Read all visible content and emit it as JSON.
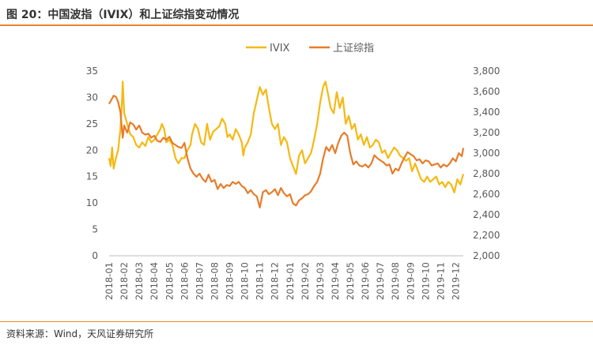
{
  "figure": {
    "title": "图 20：中国波指（IVIX）和上证综指变动情况",
    "source": "资料来源：Wind，天风证券研究所"
  },
  "chart_data": {
    "type": "line",
    "title": "",
    "legend_position": "top-center",
    "grid": false,
    "x_ticks": [
      "2018-01",
      "2018-02",
      "2018-03",
      "2018-04",
      "2018-05",
      "2018-06",
      "2018-07",
      "2018-08",
      "2018-09",
      "2018-10",
      "2018-11",
      "2018-12",
      "2019-01",
      "2019-02",
      "2019-03",
      "2019-04",
      "2019-05",
      "2019-06",
      "2019-07",
      "2019-08",
      "2019-09",
      "2019-10",
      "2019-11",
      "2019-12"
    ],
    "x_range": [
      0,
      23.5
    ],
    "y_left": {
      "range": [
        0,
        35
      ],
      "ticks": [
        0,
        5,
        10,
        15,
        20,
        25,
        30,
        35
      ],
      "tick_labels": [
        "0",
        "5",
        "10",
        "15",
        "20",
        "25",
        "30",
        "35"
      ]
    },
    "y_right": {
      "range": [
        2000,
        3800
      ],
      "ticks": [
        2000,
        2200,
        2400,
        2600,
        2800,
        3000,
        3200,
        3400,
        3600,
        3800
      ],
      "tick_labels": [
        "2,000",
        "2,200",
        "2,400",
        "2,600",
        "2,800",
        "3,000",
        "3,200",
        "3,400",
        "3,600",
        "3,800"
      ]
    },
    "series": [
      {
        "name": "IVIX",
        "axis": "left",
        "color": "#f5b914",
        "points": [
          [
            0.0,
            18.5
          ],
          [
            0.1,
            17.0
          ],
          [
            0.2,
            20.5
          ],
          [
            0.3,
            16.5
          ],
          [
            0.45,
            18.5
          ],
          [
            0.6,
            20.0
          ],
          [
            0.75,
            24.0
          ],
          [
            0.85,
            29.0
          ],
          [
            0.9,
            33.0
          ],
          [
            1.0,
            27.0
          ],
          [
            1.2,
            25.0
          ],
          [
            1.4,
            23.0
          ],
          [
            1.6,
            22.5
          ],
          [
            1.8,
            21.0
          ],
          [
            2.0,
            20.5
          ],
          [
            2.2,
            21.5
          ],
          [
            2.4,
            20.8
          ],
          [
            2.6,
            22.5
          ],
          [
            2.8,
            21.5
          ],
          [
            3.0,
            22.0
          ],
          [
            3.2,
            23.0
          ],
          [
            3.4,
            24.0
          ],
          [
            3.5,
            25.0
          ],
          [
            3.65,
            24.0
          ],
          [
            3.8,
            21.5
          ],
          [
            4.0,
            22.0
          ],
          [
            4.2,
            21.0
          ],
          [
            4.4,
            18.5
          ],
          [
            4.6,
            17.5
          ],
          [
            4.8,
            18.5
          ],
          [
            5.0,
            18.5
          ],
          [
            5.2,
            20.0
          ],
          [
            5.4,
            21.0
          ],
          [
            5.5,
            23.0
          ],
          [
            5.7,
            25.0
          ],
          [
            5.9,
            24.0
          ],
          [
            6.1,
            21.5
          ],
          [
            6.3,
            21.0
          ],
          [
            6.5,
            25.0
          ],
          [
            6.7,
            22.0
          ],
          [
            6.9,
            23.5
          ],
          [
            7.1,
            24.0
          ],
          [
            7.3,
            24.5
          ],
          [
            7.5,
            26.0
          ],
          [
            7.7,
            25.0
          ],
          [
            7.85,
            22.5
          ],
          [
            8.0,
            23.0
          ],
          [
            8.2,
            22.0
          ],
          [
            8.4,
            24.0
          ],
          [
            8.6,
            23.0
          ],
          [
            8.8,
            21.5
          ],
          [
            8.9,
            19.0
          ],
          [
            9.0,
            20.5
          ],
          [
            9.2,
            21.5
          ],
          [
            9.4,
            23.0
          ],
          [
            9.6,
            27.0
          ],
          [
            9.8,
            29.5
          ],
          [
            10.0,
            32.0
          ],
          [
            10.2,
            30.5
          ],
          [
            10.4,
            31.5
          ],
          [
            10.6,
            28.0
          ],
          [
            10.8,
            25.0
          ],
          [
            11.0,
            24.0
          ],
          [
            11.2,
            25.0
          ],
          [
            11.4,
            21.0
          ],
          [
            11.6,
            22.5
          ],
          [
            11.8,
            21.5
          ],
          [
            12.0,
            18.5
          ],
          [
            12.2,
            17.0
          ],
          [
            12.4,
            15.5
          ],
          [
            12.6,
            19.0
          ],
          [
            12.8,
            20.0
          ],
          [
            13.0,
            17.5
          ],
          [
            13.2,
            18.5
          ],
          [
            13.4,
            19.5
          ],
          [
            13.6,
            22.0
          ],
          [
            13.8,
            25.0
          ],
          [
            14.0,
            29.0
          ],
          [
            14.2,
            32.0
          ],
          [
            14.35,
            33.0
          ],
          [
            14.5,
            31.0
          ],
          [
            14.7,
            28.0
          ],
          [
            14.9,
            27.0
          ],
          [
            15.1,
            31.0
          ],
          [
            15.3,
            28.0
          ],
          [
            15.5,
            30.0
          ],
          [
            15.7,
            25.0
          ],
          [
            15.9,
            26.5
          ],
          [
            16.1,
            24.0
          ],
          [
            16.3,
            25.0
          ],
          [
            16.5,
            22.0
          ],
          [
            16.7,
            23.0
          ],
          [
            16.9,
            21.0
          ],
          [
            17.1,
            22.5
          ],
          [
            17.3,
            20.5
          ],
          [
            17.5,
            21.0
          ],
          [
            17.7,
            22.0
          ],
          [
            17.9,
            21.5
          ],
          [
            18.1,
            19.5
          ],
          [
            18.3,
            20.0
          ],
          [
            18.5,
            18.5
          ],
          [
            18.7,
            19.5
          ],
          [
            18.9,
            20.5
          ],
          [
            19.1,
            20.0
          ],
          [
            19.3,
            19.0
          ],
          [
            19.5,
            18.5
          ],
          [
            19.7,
            18.0
          ],
          [
            19.9,
            18.5
          ],
          [
            20.1,
            16.0
          ],
          [
            20.3,
            17.5
          ],
          [
            20.5,
            16.0
          ],
          [
            20.7,
            14.5
          ],
          [
            20.9,
            14.0
          ],
          [
            21.1,
            15.0
          ],
          [
            21.3,
            14.0
          ],
          [
            21.5,
            14.5
          ],
          [
            21.7,
            15.0
          ],
          [
            21.9,
            13.5
          ],
          [
            22.1,
            14.0
          ],
          [
            22.3,
            13.0
          ],
          [
            22.5,
            14.0
          ],
          [
            22.7,
            13.5
          ],
          [
            22.9,
            12.0
          ],
          [
            23.1,
            14.5
          ],
          [
            23.3,
            13.5
          ],
          [
            23.5,
            15.5
          ]
        ]
      },
      {
        "name": "上证综指",
        "axis": "right",
        "color": "#e87c2a",
        "points": [
          [
            0.0,
            3480
          ],
          [
            0.15,
            3520
          ],
          [
            0.3,
            3560
          ],
          [
            0.45,
            3550
          ],
          [
            0.6,
            3500
          ],
          [
            0.75,
            3400
          ],
          [
            0.9,
            3150
          ],
          [
            1.0,
            3270
          ],
          [
            1.2,
            3200
          ],
          [
            1.4,
            3300
          ],
          [
            1.6,
            3280
          ],
          [
            1.8,
            3230
          ],
          [
            2.0,
            3270
          ],
          [
            2.2,
            3200
          ],
          [
            2.4,
            3180
          ],
          [
            2.6,
            3190
          ],
          [
            2.8,
            3150
          ],
          [
            3.0,
            3170
          ],
          [
            3.2,
            3120
          ],
          [
            3.4,
            3110
          ],
          [
            3.6,
            3150
          ],
          [
            3.8,
            3130
          ],
          [
            4.0,
            3160
          ],
          [
            4.2,
            3100
          ],
          [
            4.4,
            3080
          ],
          [
            4.6,
            3060
          ],
          [
            4.8,
            3050
          ],
          [
            5.0,
            3100
          ],
          [
            5.2,
            2950
          ],
          [
            5.4,
            2850
          ],
          [
            5.6,
            2800
          ],
          [
            5.8,
            2770
          ],
          [
            6.0,
            2800
          ],
          [
            6.2,
            2750
          ],
          [
            6.4,
            2720
          ],
          [
            6.6,
            2790
          ],
          [
            6.8,
            2720
          ],
          [
            7.0,
            2740
          ],
          [
            7.2,
            2650
          ],
          [
            7.4,
            2700
          ],
          [
            7.6,
            2660
          ],
          [
            7.8,
            2690
          ],
          [
            8.0,
            2680
          ],
          [
            8.2,
            2720
          ],
          [
            8.4,
            2700
          ],
          [
            8.6,
            2720
          ],
          [
            8.8,
            2680
          ],
          [
            9.0,
            2660
          ],
          [
            9.2,
            2610
          ],
          [
            9.4,
            2640
          ],
          [
            9.6,
            2600
          ],
          [
            9.8,
            2580
          ],
          [
            10.0,
            2470
          ],
          [
            10.2,
            2620
          ],
          [
            10.4,
            2640
          ],
          [
            10.6,
            2600
          ],
          [
            10.8,
            2620
          ],
          [
            11.0,
            2650
          ],
          [
            11.2,
            2590
          ],
          [
            11.4,
            2660
          ],
          [
            11.6,
            2610
          ],
          [
            11.8,
            2580
          ],
          [
            12.0,
            2600
          ],
          [
            12.2,
            2510
          ],
          [
            12.4,
            2490
          ],
          [
            12.6,
            2540
          ],
          [
            12.8,
            2560
          ],
          [
            13.0,
            2590
          ],
          [
            13.2,
            2600
          ],
          [
            13.4,
            2630
          ],
          [
            13.6,
            2680
          ],
          [
            13.8,
            2720
          ],
          [
            14.0,
            2800
          ],
          [
            14.2,
            2950
          ],
          [
            14.4,
            3060
          ],
          [
            14.6,
            3020
          ],
          [
            14.8,
            3080
          ],
          [
            15.0,
            3000
          ],
          [
            15.2,
            3100
          ],
          [
            15.4,
            3170
          ],
          [
            15.6,
            3200
          ],
          [
            15.8,
            3170
          ],
          [
            16.0,
            3000
          ],
          [
            16.2,
            2890
          ],
          [
            16.4,
            2920
          ],
          [
            16.6,
            2880
          ],
          [
            16.8,
            2870
          ],
          [
            17.0,
            2890
          ],
          [
            17.2,
            2860
          ],
          [
            17.4,
            2900
          ],
          [
            17.6,
            2980
          ],
          [
            17.8,
            2950
          ],
          [
            18.0,
            2930
          ],
          [
            18.2,
            2910
          ],
          [
            18.4,
            2880
          ],
          [
            18.6,
            2890
          ],
          [
            18.8,
            2800
          ],
          [
            19.0,
            2850
          ],
          [
            19.2,
            2830
          ],
          [
            19.4,
            2900
          ],
          [
            19.6,
            2960
          ],
          [
            19.8,
            3010
          ],
          [
            20.0,
            2990
          ],
          [
            20.2,
            2970
          ],
          [
            20.4,
            2930
          ],
          [
            20.6,
            2940
          ],
          [
            20.8,
            2900
          ],
          [
            21.0,
            2930
          ],
          [
            21.2,
            2920
          ],
          [
            21.4,
            2880
          ],
          [
            21.6,
            2890
          ],
          [
            21.8,
            2900
          ],
          [
            22.0,
            2860
          ],
          [
            22.2,
            2890
          ],
          [
            22.4,
            2870
          ],
          [
            22.6,
            2900
          ],
          [
            22.8,
            2950
          ],
          [
            23.0,
            2920
          ],
          [
            23.2,
            3000
          ],
          [
            23.4,
            2970
          ],
          [
            23.5,
            3050
          ]
        ]
      }
    ]
  }
}
